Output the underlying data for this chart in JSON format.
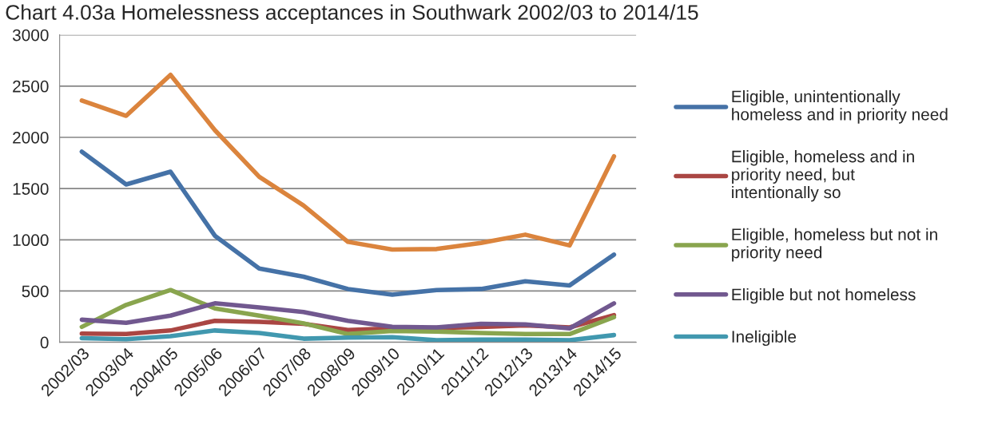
{
  "chart_data": {
    "type": "line",
    "title": "Chart 4.03a Homelessness acceptances in Southwark 2002/03 to 2014/15",
    "categories": [
      "2002/03",
      "2003/04",
      "2004/05",
      "2005/06",
      "2006/07",
      "2007/08",
      "2008/09",
      "2009/10",
      "2010/11",
      "2011/12",
      "2012/13",
      "2013/14",
      "2014/15"
    ],
    "series": [
      {
        "name": "Eligible, unintentionally homeless and in priority need",
        "color": "#4572a7",
        "values": [
          1860,
          1540,
          1665,
          1040,
          720,
          640,
          520,
          465,
          510,
          520,
          595,
          555,
          855
        ]
      },
      {
        "name": "Eligible, homeless and in priority need, but intentionally so",
        "color": "#aa4643",
        "values": [
          85,
          80,
          115,
          210,
          200,
          180,
          120,
          135,
          140,
          150,
          165,
          145,
          265
        ]
      },
      {
        "name": "Eligible, homeless but not in priority need",
        "color": "#89a54e",
        "values": [
          150,
          365,
          510,
          330,
          260,
          185,
          80,
          110,
          105,
          90,
          80,
          80,
          245
        ]
      },
      {
        "name": "Eligible but not homeless",
        "color": "#71588f",
        "values": [
          220,
          190,
          260,
          380,
          340,
          295,
          210,
          150,
          145,
          180,
          175,
          135,
          380
        ]
      },
      {
        "name": "Ineligible",
        "color": "#4198af",
        "values": [
          40,
          30,
          60,
          115,
          90,
          35,
          45,
          50,
          20,
          25,
          25,
          20,
          70
        ]
      },
      {
        "color": "#db843d",
        "values": [
          2360,
          2210,
          2610,
          2070,
          1615,
          1335,
          980,
          905,
          910,
          970,
          1050,
          945,
          1815
        ]
      }
    ],
    "ylim": [
      0,
      3000
    ],
    "yticks": [
      0,
      500,
      1000,
      1500,
      2000,
      2500,
      3000
    ],
    "grid": "y",
    "legend": "right",
    "marker": "none",
    "line_style": "solid"
  }
}
